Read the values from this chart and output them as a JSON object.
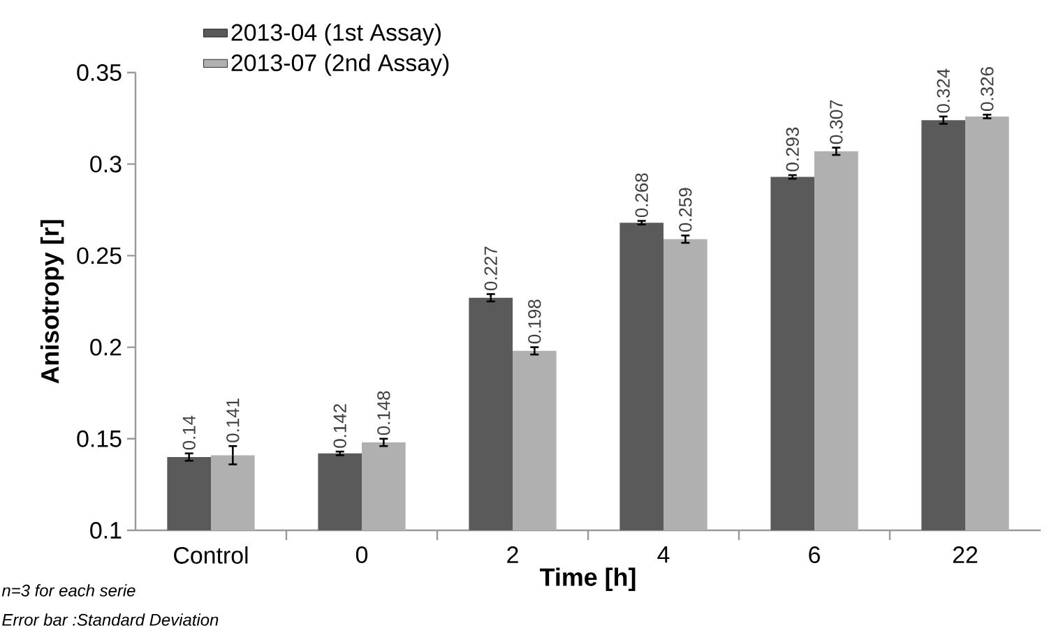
{
  "chart_data": {
    "type": "bar",
    "xlabel": "Time [h]",
    "ylabel": "Anisotropy [r]",
    "categories": [
      "Control",
      "0",
      "2",
      "4",
      "6",
      "22"
    ],
    "series": [
      {
        "name": "2013-04 (1st Assay)",
        "color": "#5a5a5a",
        "values": [
          0.14,
          0.142,
          0.227,
          0.268,
          0.293,
          0.324
        ],
        "errors": [
          0.002,
          0.001,
          0.002,
          0.001,
          0.001,
          0.002
        ]
      },
      {
        "name": "2013-07 (2nd Assay)",
        "color": "#b0b0b0",
        "values": [
          0.141,
          0.148,
          0.198,
          0.259,
          0.307,
          0.326
        ],
        "errors": [
          0.005,
          0.002,
          0.002,
          0.002,
          0.002,
          0.001
        ]
      }
    ],
    "ylim": [
      0.1,
      0.35
    ],
    "yticks": [
      0.1,
      0.15,
      0.2,
      0.25,
      0.3,
      0.35
    ],
    "data_labels": true,
    "legend": "top left",
    "grid": false,
    "annotations": [
      "n=3 for each serie",
      "Error bar :Standard Deviation"
    ]
  }
}
